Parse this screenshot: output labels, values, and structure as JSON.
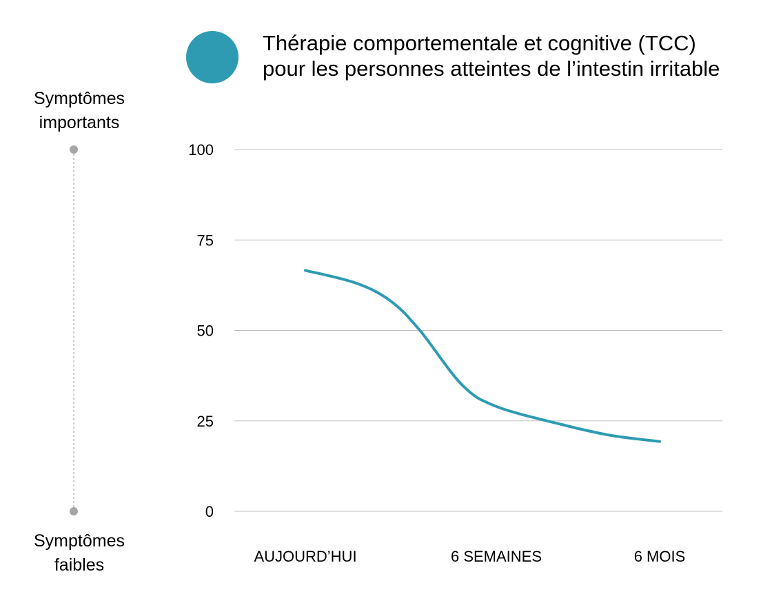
{
  "chart_data": {
    "type": "line",
    "title": [
      "Thérapie comportementale et cognitive (TCC)",
      "pour les personnes atteintes de l’intestin irritable"
    ],
    "categories": [
      "AUJOURD’HUI",
      "6 SEMAINES",
      "6 MOIS"
    ],
    "ylim": [
      0,
      100
    ],
    "yticks": [
      "0",
      "25",
      "50",
      "75",
      "100"
    ],
    "series": [
      {
        "name": "Thérapie comportementale et cognitive (TCC) pour les personnes atteintes de l’intestin irritable",
        "color": "#2e9bb3",
        "points": [
          [
            0,
            66.6
          ],
          [
            0.27,
            63
          ],
          [
            0.45,
            58
          ],
          [
            0.6,
            50
          ],
          [
            0.82,
            35
          ],
          [
            1.0,
            29
          ],
          [
            1.4,
            24
          ],
          [
            1.7,
            21
          ],
          [
            2.0,
            19.3
          ]
        ]
      }
    ],
    "grid": true,
    "legend": "top-right",
    "scale_labels": {
      "top": [
        "Symptômes",
        "importants"
      ],
      "bottom": [
        "Symptômes",
        "faibles"
      ]
    }
  }
}
